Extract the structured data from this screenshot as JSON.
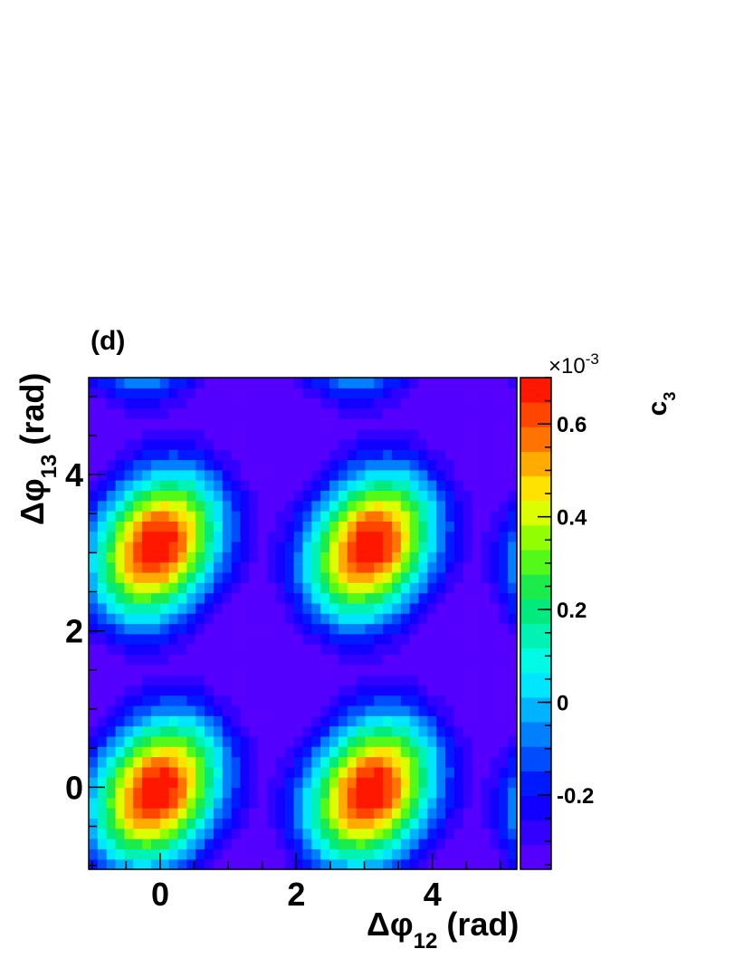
{
  "chart_data": {
    "type": "heatmap",
    "panel_label": "(d)",
    "xlabel": {
      "symbol": "Δφ",
      "subscript": "12",
      "unit": "(rad)"
    },
    "ylabel": {
      "symbol": "Δφ",
      "subscript": "13",
      "unit": "(rad)"
    },
    "xlim": [
      -1.05,
      5.24
    ],
    "ylim": [
      -1.05,
      5.24
    ],
    "x_ticks": [
      0,
      2,
      4
    ],
    "y_ticks": [
      0,
      2,
      4
    ],
    "x_tick_labels": [
      "0",
      "2",
      "4"
    ],
    "y_tick_labels": [
      "0",
      "2",
      "4"
    ],
    "grid": false,
    "bins": 48,
    "model": {
      "peak_centers": [
        [
          0.0,
          0.0
        ],
        [
          3.14,
          0.0
        ],
        [
          0.0,
          3.14
        ],
        [
          3.14,
          3.14
        ]
      ],
      "peak_amplitude": 0.00072,
      "baseline": -0.00036,
      "periodicity": 3.1416
    },
    "colorbar": {
      "title": "c",
      "title_subscript": "3",
      "multiplier": "×10",
      "multiplier_exponent": "-3",
      "range": [
        -0.36,
        0.7
      ],
      "ticks": [
        -0.2,
        0,
        0.2,
        0.4,
        0.6
      ],
      "tick_labels": [
        "-0.2",
        "0",
        "0.2",
        "0.4",
        "0.6"
      ],
      "levels": 20
    }
  }
}
